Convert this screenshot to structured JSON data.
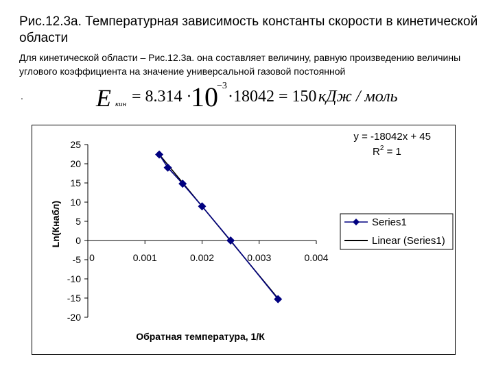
{
  "slide": {
    "title": "Рис.12.3а. Температурная зависимость константы скорости в кинетической области",
    "subtitle": "Для кинетической области – Рис.12.3а.  она составляет величину, равную произведению величины углового коэффициента на значение универсальной газовой постоянной",
    "bullet": "."
  },
  "formula": {
    "symbol": "E",
    "subscript": "кин",
    "part1": "= 8.314 ·",
    "ten": "10",
    "exponent": "−3",
    "part2": "·18042 = 150",
    "unit": "кДж / моль"
  },
  "chart_data": {
    "type": "scatter",
    "xlabel": "Обратная температура, 1/К",
    "ylabel": "Ln(Кнабл)",
    "xlim": [
      0,
      0.004
    ],
    "ylim": [
      -20,
      25
    ],
    "x_ticks": [
      0,
      0.001,
      0.002,
      0.003,
      0.004
    ],
    "x_tick_labels": [
      "0",
      "0.001",
      "0.002",
      "0.003",
      "0.004"
    ],
    "y_ticks": [
      25,
      20,
      15,
      10,
      5,
      0,
      -5,
      -10,
      -15,
      -20
    ],
    "y_tick_labels": [
      "25",
      "20",
      "15",
      "10",
      "5",
      "0",
      "-5",
      "-10",
      "-15",
      "-20"
    ],
    "series": [
      {
        "name": "Series1",
        "color": "#000080",
        "marker": "diamond",
        "points": [
          [
            0.00125,
            22.4
          ],
          [
            0.0014,
            19.0
          ],
          [
            0.00166,
            14.8
          ],
          [
            0.002,
            8.9
          ],
          [
            0.0025,
            0.0
          ],
          [
            0.00333,
            -15.3
          ]
        ]
      }
    ],
    "trendline": {
      "name": "Linear (Series1)",
      "color": "#000000",
      "slope": -18042,
      "intercept": 45
    },
    "equation": "y = -18042x + 45",
    "r2_prefix": "R",
    "r2_sup": "2",
    "r2_suffix": " = 1",
    "legend_position": "right",
    "grid": false
  }
}
